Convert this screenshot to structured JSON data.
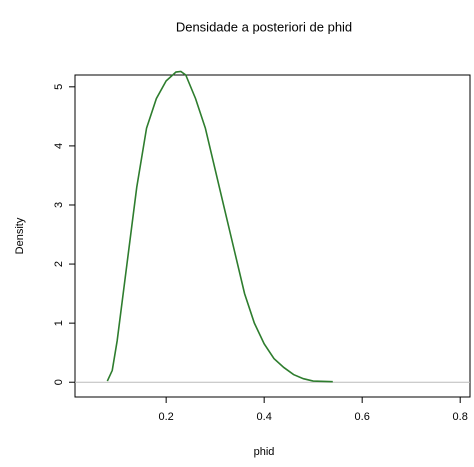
{
  "chart_data": {
    "type": "line",
    "title": "Densidade a posteriori de phid",
    "x_label": "phid",
    "y_label": "Density",
    "x": [
      0.08,
      0.09,
      0.1,
      0.12,
      0.14,
      0.16,
      0.18,
      0.2,
      0.22,
      0.23,
      0.24,
      0.26,
      0.28,
      0.3,
      0.32,
      0.34,
      0.36,
      0.38,
      0.4,
      0.42,
      0.44,
      0.46,
      0.48,
      0.5,
      0.54
    ],
    "series": [
      {
        "name": "phid",
        "color": "#2e7d2e",
        "values": [
          0.02,
          0.2,
          0.7,
          2.0,
          3.3,
          4.3,
          4.8,
          5.1,
          5.25,
          5.26,
          5.2,
          4.8,
          4.3,
          3.6,
          2.9,
          2.2,
          1.5,
          1.0,
          0.65,
          0.4,
          0.25,
          0.13,
          0.06,
          0.02,
          0.01
        ]
      }
    ],
    "xlim": [
      0.014,
      0.82
    ],
    "ylim": [
      -0.25,
      5.2
    ],
    "xticks": [
      0.2,
      0.4,
      0.6,
      0.8
    ],
    "yticks": [
      0,
      1,
      2,
      3,
      4,
      5
    ]
  }
}
